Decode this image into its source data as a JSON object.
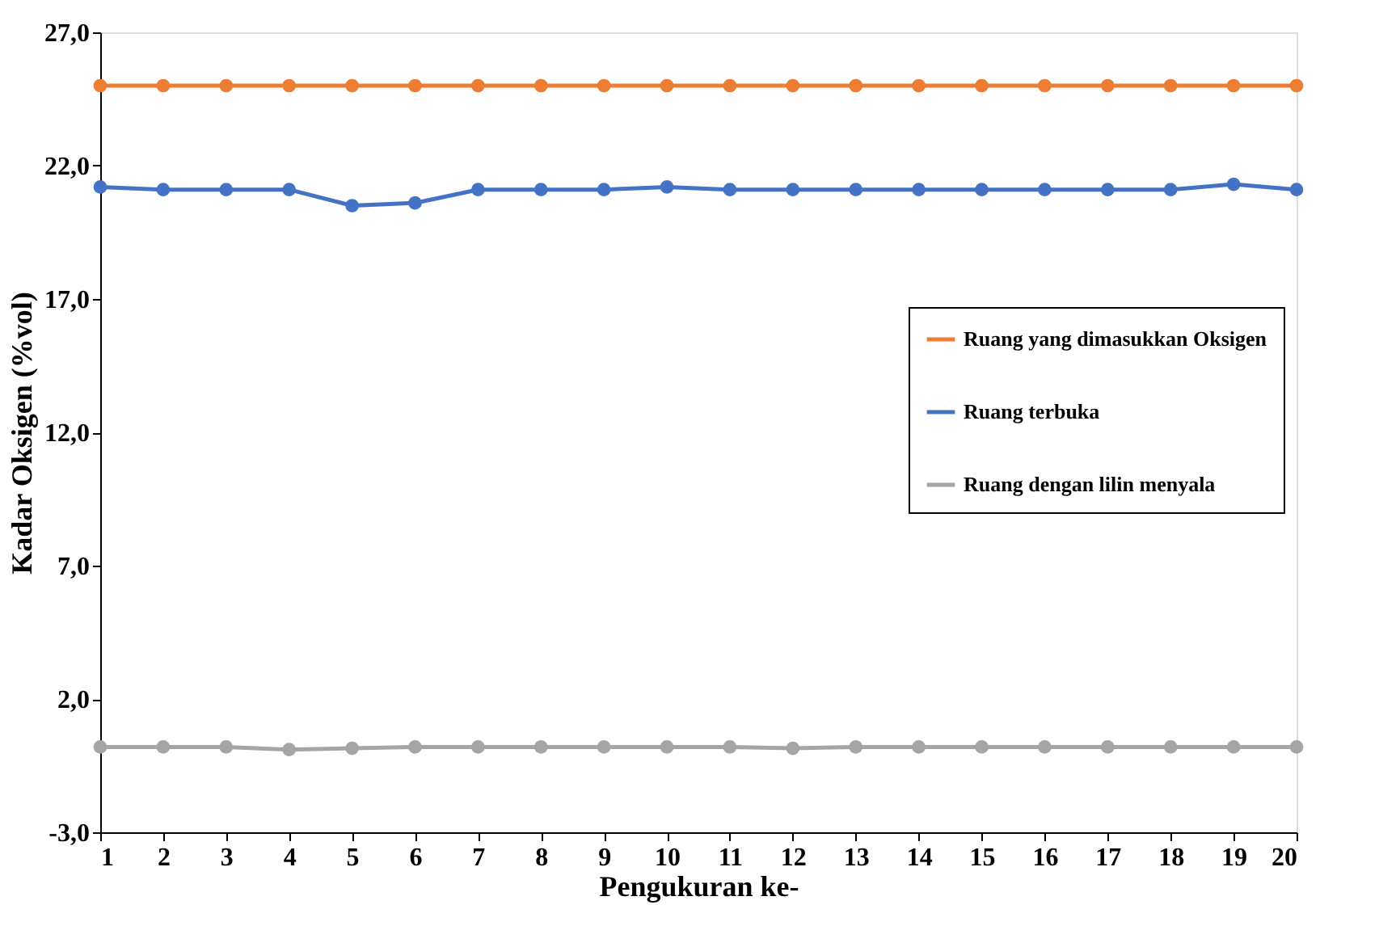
{
  "chart_data": {
    "type": "line",
    "xlabel": "Pengukuran ke-",
    "ylabel": "Kadar Oksigen (%vol)",
    "x": [
      1,
      2,
      3,
      4,
      5,
      6,
      7,
      8,
      9,
      10,
      11,
      12,
      13,
      14,
      15,
      16,
      17,
      18,
      19,
      20
    ],
    "xlim": [
      1,
      20
    ],
    "xticks": [
      1,
      2,
      3,
      4,
      5,
      6,
      7,
      8,
      9,
      10,
      11,
      12,
      13,
      14,
      15,
      16,
      17,
      18,
      19,
      20
    ],
    "ylim": [
      -3,
      27
    ],
    "yticks": [
      {
        "value": -3,
        "label": "-3,0"
      },
      {
        "value": 2,
        "label": "2,0"
      },
      {
        "value": 7,
        "label": "7,0"
      },
      {
        "value": 12,
        "label": "12,0"
      },
      {
        "value": 17,
        "label": "17,0"
      },
      {
        "value": 22,
        "label": "22,0"
      },
      {
        "value": 27,
        "label": "27,0"
      }
    ],
    "series": [
      {
        "name": "Ruang yang dimasukkan Oksigen",
        "color": "#ed7d31",
        "values": [
          25.0,
          25.0,
          25.0,
          25.0,
          25.0,
          25.0,
          25.0,
          25.0,
          25.0,
          25.0,
          25.0,
          25.0,
          25.0,
          25.0,
          25.0,
          25.0,
          25.0,
          25.0,
          25.0,
          25.0
        ]
      },
      {
        "name": "Ruang terbuka",
        "color": "#4472c4",
        "values": [
          21.2,
          21.1,
          21.1,
          21.1,
          20.5,
          20.6,
          21.1,
          21.1,
          21.1,
          21.2,
          21.1,
          21.1,
          21.1,
          21.1,
          21.1,
          21.1,
          21.1,
          21.1,
          21.3,
          21.1
        ]
      },
      {
        "name": "Ruang dengan lilin menyala",
        "color": "#a5a5a5",
        "values": [
          0.2,
          0.2,
          0.2,
          0.1,
          0.15,
          0.2,
          0.2,
          0.2,
          0.2,
          0.2,
          0.2,
          0.15,
          0.2,
          0.2,
          0.2,
          0.2,
          0.2,
          0.2,
          0.2,
          0.2
        ]
      }
    ],
    "marker": "circle",
    "line_style": "solid",
    "grid": false,
    "legend": "right"
  }
}
